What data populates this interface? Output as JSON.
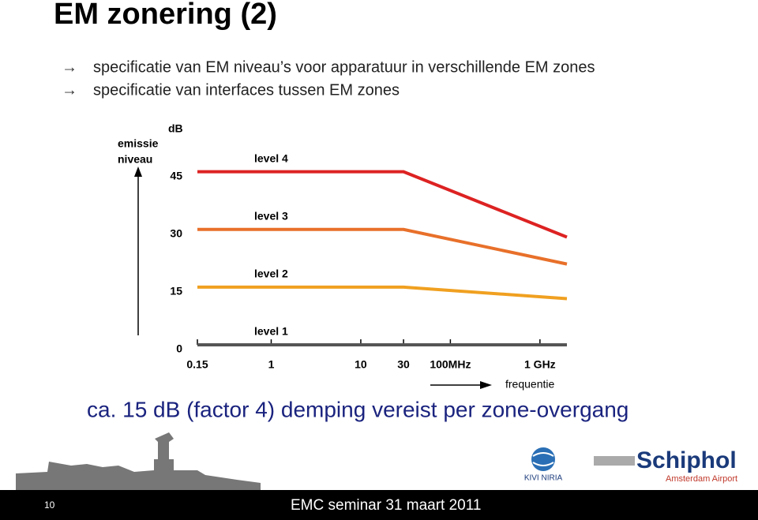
{
  "slide": {
    "title": "EM zonering (2)",
    "bullets": [
      "specificatie van EM niveau’s voor apparatuur in verschillende EM zones",
      "specificatie van interfaces tussen EM zones"
    ],
    "conclusion": "ca. 15 dB (factor 4) demping vereist per zone-overgang",
    "page_number": "10",
    "footer": "EMC seminar 31 maart 2011",
    "logos": {
      "kivi": "KIVI NIRIA",
      "schiphol": "Schiphol",
      "schiphol_sub": "Amsterdam Airport"
    }
  },
  "chart_data": {
    "type": "line",
    "y_unit": "dB",
    "y_label": [
      "emissie",
      "niveau"
    ],
    "x_label": "frequentie",
    "x_scale": "log",
    "x": [
      0.15,
      30,
      2000
    ],
    "xlim": [
      0.15,
      2000
    ],
    "xticks": [
      0.15,
      1,
      10,
      30,
      {
        "value": 100,
        "label": "100MHz"
      },
      {
        "value": 1000,
        "label": "1 GHz"
      }
    ],
    "ylim": [
      0,
      48
    ],
    "yticks": [
      0,
      15,
      30,
      45
    ],
    "series": [
      {
        "name": "level 4",
        "color": "#dd2222",
        "values": [
          45,
          45,
          28
        ]
      },
      {
        "name": "level 3",
        "color": "#e8702a",
        "values": [
          30,
          30,
          21
        ]
      },
      {
        "name": "level 2",
        "color": "#f0a020",
        "values": [
          15,
          15,
          12
        ]
      },
      {
        "name": "level 1",
        "color": "#555555",
        "values": [
          0,
          0,
          0
        ]
      }
    ]
  }
}
